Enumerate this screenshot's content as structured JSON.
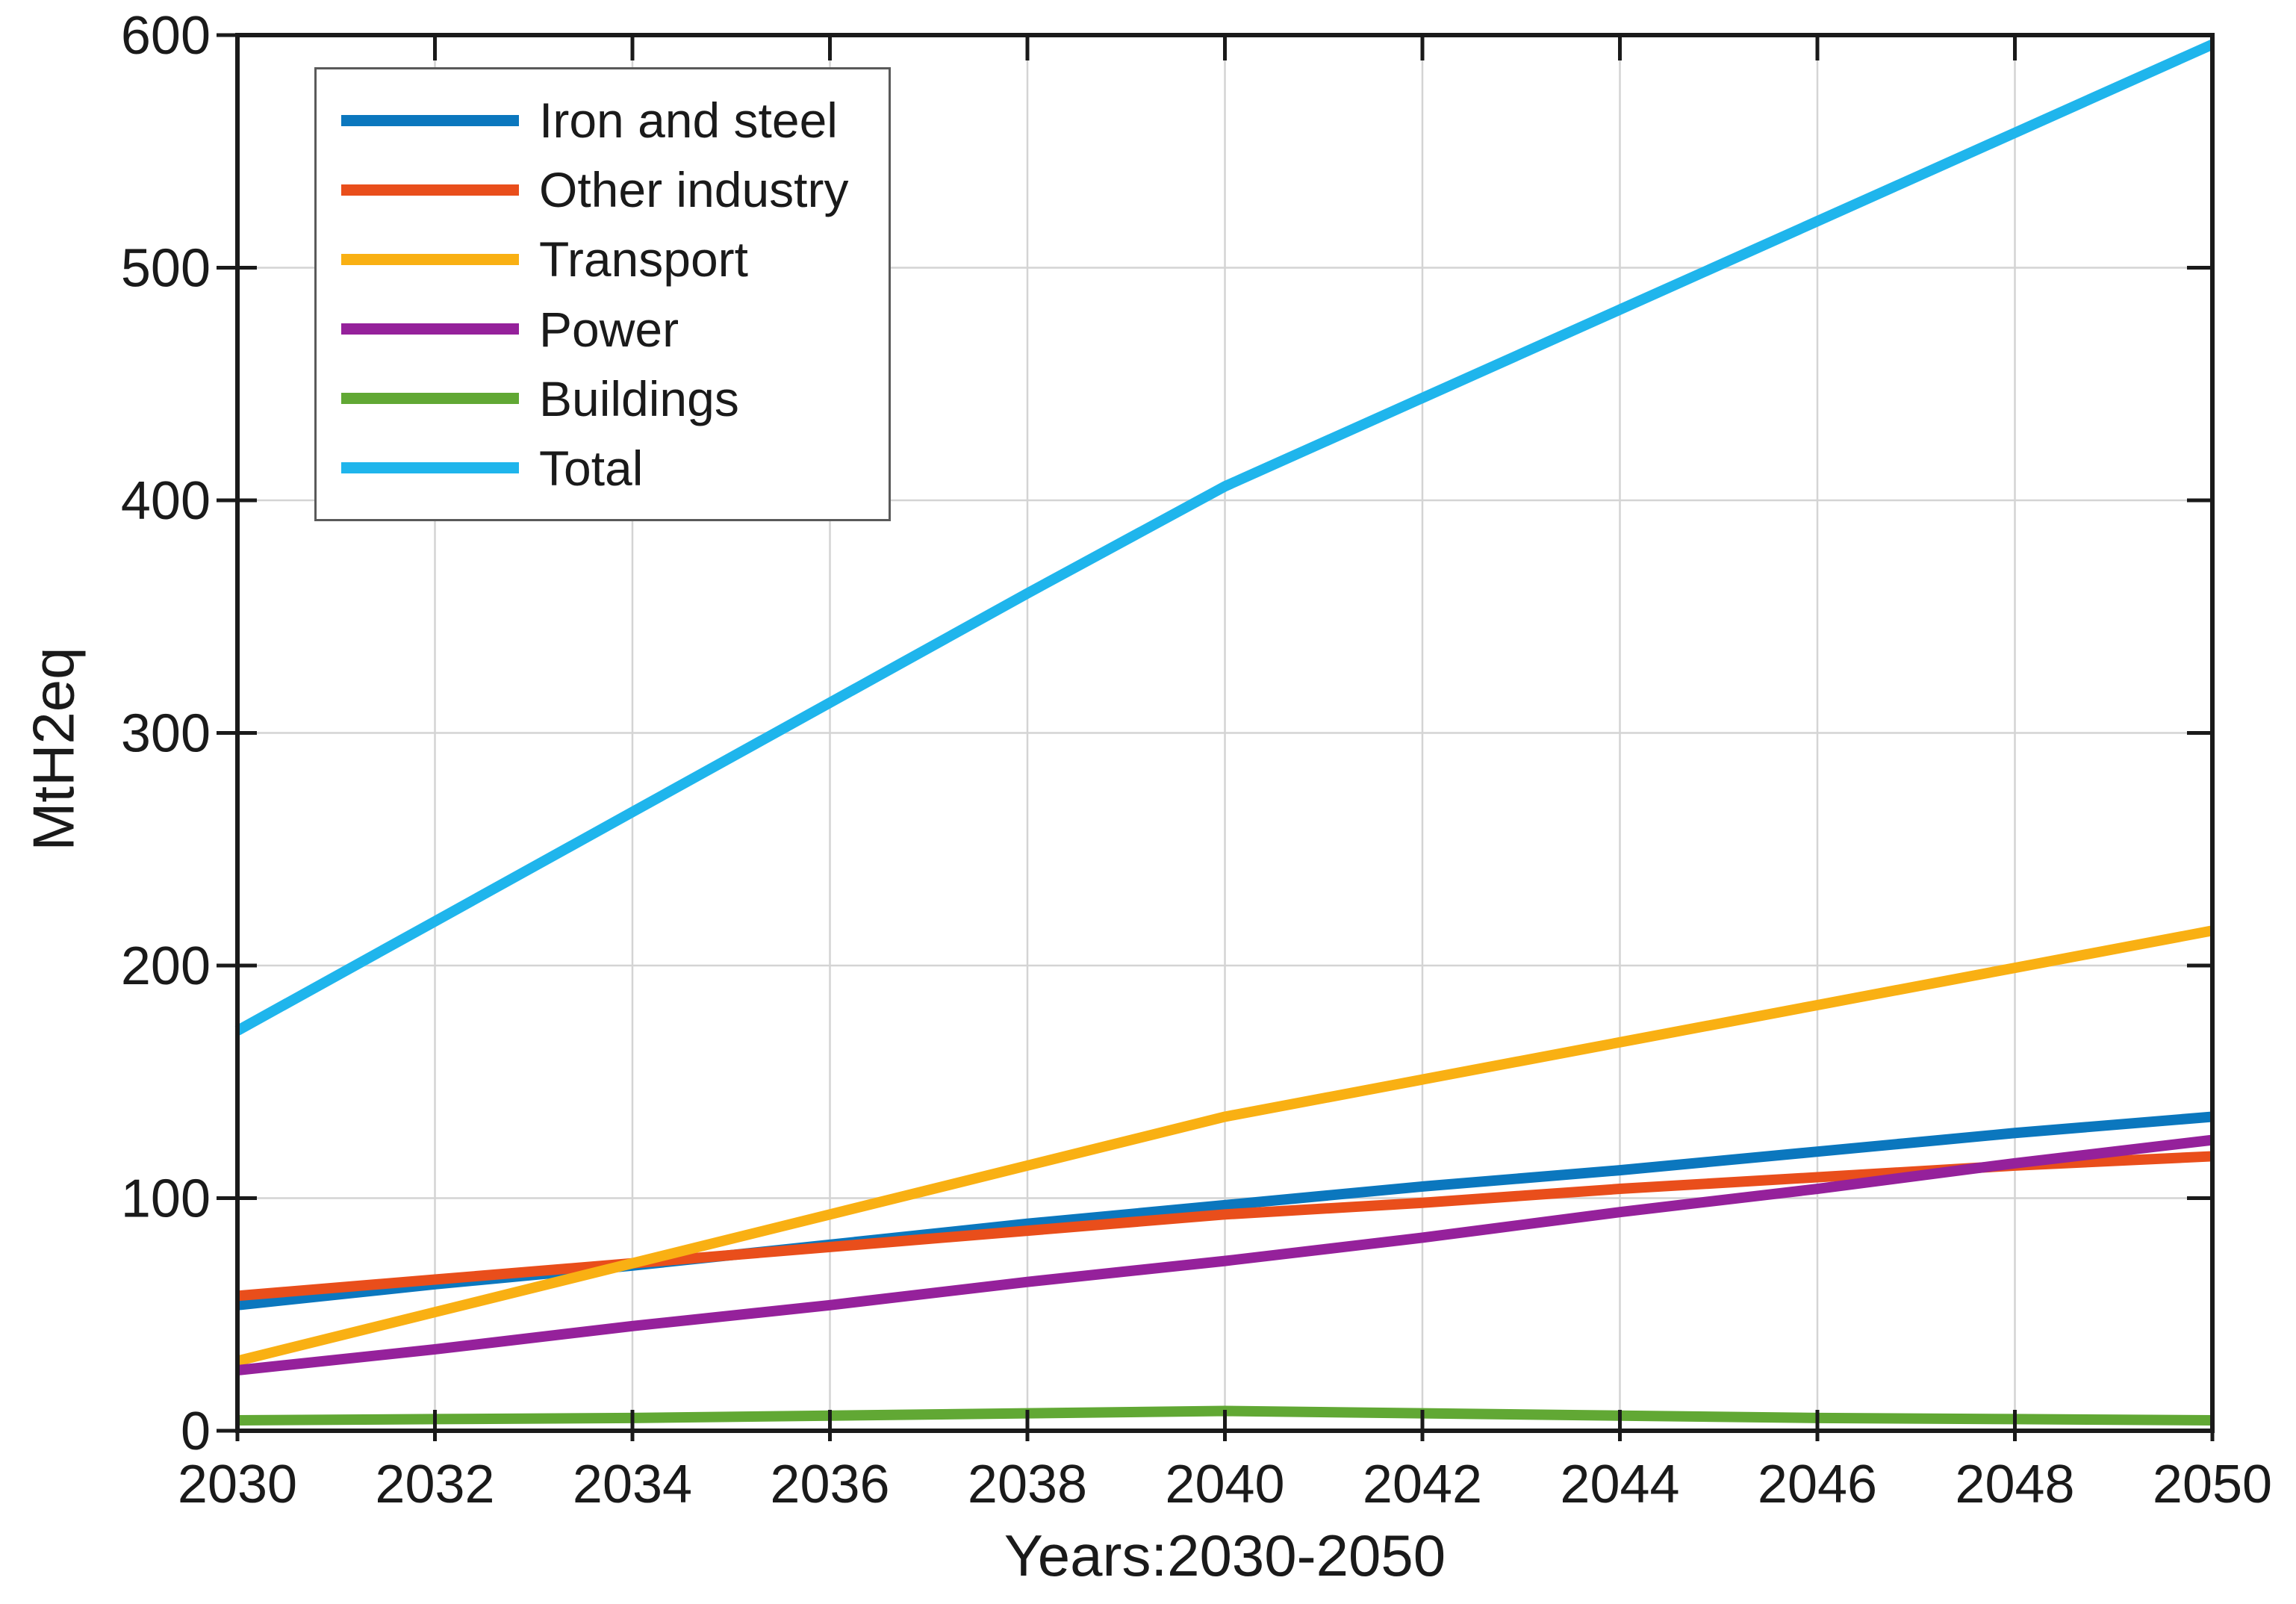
{
  "figure": {
    "background": "#ffffff",
    "axis_color": "#1a1a1a",
    "grid_color": "#d4d4d4"
  },
  "chart_data": {
    "type": "line",
    "title": "",
    "xlabel": "Years:2030-2050",
    "ylabel": "MtH2eq",
    "x": [
      2030,
      2032,
      2034,
      2036,
      2038,
      2040,
      2042,
      2044,
      2046,
      2048,
      2050
    ],
    "xlim": [
      2030,
      2050
    ],
    "ylim": [
      0,
      600
    ],
    "xticks": [
      2030,
      2032,
      2034,
      2036,
      2038,
      2040,
      2042,
      2044,
      2046,
      2048,
      2050
    ],
    "yticks": [
      0,
      100,
      200,
      300,
      400,
      500,
      600
    ],
    "grid": true,
    "legend_position": "top-left",
    "series": [
      {
        "name": "Iron and steel",
        "color": "#0B77BE",
        "values": [
          54,
          63,
          71,
          80,
          89,
          97,
          105,
          112,
          120,
          128,
          135
        ]
      },
      {
        "name": "Other industry",
        "color": "#E94E1B",
        "values": [
          58,
          65,
          72,
          79,
          86,
          93,
          98,
          104,
          109,
          114,
          118
        ]
      },
      {
        "name": "Transport",
        "color": "#F9B013",
        "values": [
          30,
          51,
          72,
          93,
          114,
          135,
          151,
          167,
          183,
          199,
          215
        ]
      },
      {
        "name": "Power",
        "color": "#95219B",
        "values": [
          26,
          35,
          45,
          54,
          64,
          73,
          83,
          94,
          104,
          115,
          125
        ]
      },
      {
        "name": "Buildings",
        "color": "#61A834",
        "values": [
          4.5,
          5,
          5.5,
          6.5,
          7.5,
          8.5,
          7.5,
          6.5,
          5.5,
          5,
          4.5
        ]
      },
      {
        "name": "Total",
        "color": "#1FB5EC",
        "values": [
          172,
          219,
          266,
          313,
          360,
          406,
          444,
          482,
          520,
          558,
          596
        ]
      }
    ]
  }
}
